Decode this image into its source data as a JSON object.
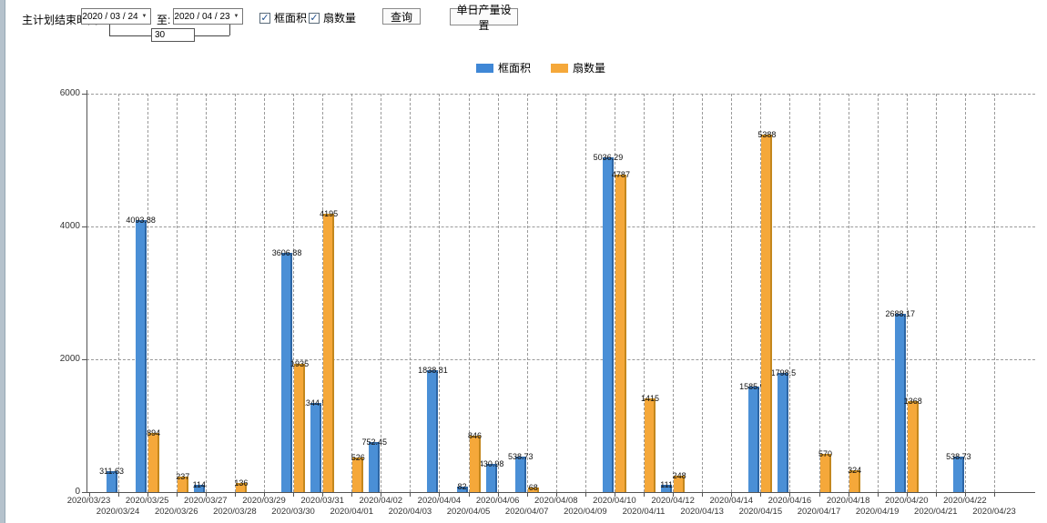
{
  "toolbar": {
    "plan_end_label": "主计划结束时间:",
    "date_from": "2020 / 03 / 24",
    "to_label": "至:",
    "date_to": "2020 / 04 / 23",
    "days_value": "30",
    "checkbox_frame_area": "框面积",
    "checkbox_fan_count": "扇数量",
    "query_button": "查询",
    "daily_output_button": "单日产量设置"
  },
  "legend": {
    "items": [
      {
        "label": "框面积",
        "color": "#3f87d6"
      },
      {
        "label": "扇数量",
        "color": "#f5a83a"
      }
    ]
  },
  "chart_data": {
    "type": "bar",
    "title": "",
    "xlabel": "",
    "ylabel": "",
    "ylim": [
      0,
      6000
    ],
    "yticks": [
      0,
      2000,
      4000,
      6000
    ],
    "grid": true,
    "legend_position": "top-center",
    "categories": [
      "2020/03/23",
      "2020/03/24",
      "2020/03/25",
      "2020/03/26",
      "2020/03/27",
      "2020/03/28",
      "2020/03/29",
      "2020/03/30",
      "2020/03/31",
      "2020/04/01",
      "2020/04/02",
      "2020/04/03",
      "2020/04/04",
      "2020/04/05",
      "2020/04/06",
      "2020/04/07",
      "2020/04/08",
      "2020/04/09",
      "2020/04/10",
      "2020/04/11",
      "2020/04/12",
      "2020/04/13",
      "2020/04/14",
      "2020/04/15",
      "2020/04/16",
      "2020/04/17",
      "2020/04/18",
      "2020/04/19",
      "2020/04/20",
      "2020/04/21",
      "2020/04/22",
      "2020/04/23"
    ],
    "series": [
      {
        "name": "框面积",
        "color": "#4a8fd6",
        "edge": "#2d66a5",
        "values": [
          null,
          311.63,
          4093.88,
          null,
          114,
          null,
          null,
          3606.88,
          1344.95,
          null,
          752.45,
          null,
          1838.81,
          82,
          430.98,
          538.73,
          null,
          null,
          5036.29,
          null,
          111,
          null,
          null,
          1585.96,
          1798.5,
          null,
          null,
          null,
          2688.17,
          null,
          538.73,
          null
        ]
      },
      {
        "name": "扇数量",
        "color": "#f5a83a",
        "edge": "#c4871d",
        "values": [
          null,
          null,
          894,
          237,
          null,
          136,
          null,
          1935,
          4195,
          526,
          null,
          null,
          null,
          846,
          null,
          68,
          null,
          null,
          4787,
          1415,
          248,
          null,
          null,
          5388,
          null,
          570,
          324,
          null,
          1368,
          null,
          null,
          null
        ]
      }
    ]
  }
}
